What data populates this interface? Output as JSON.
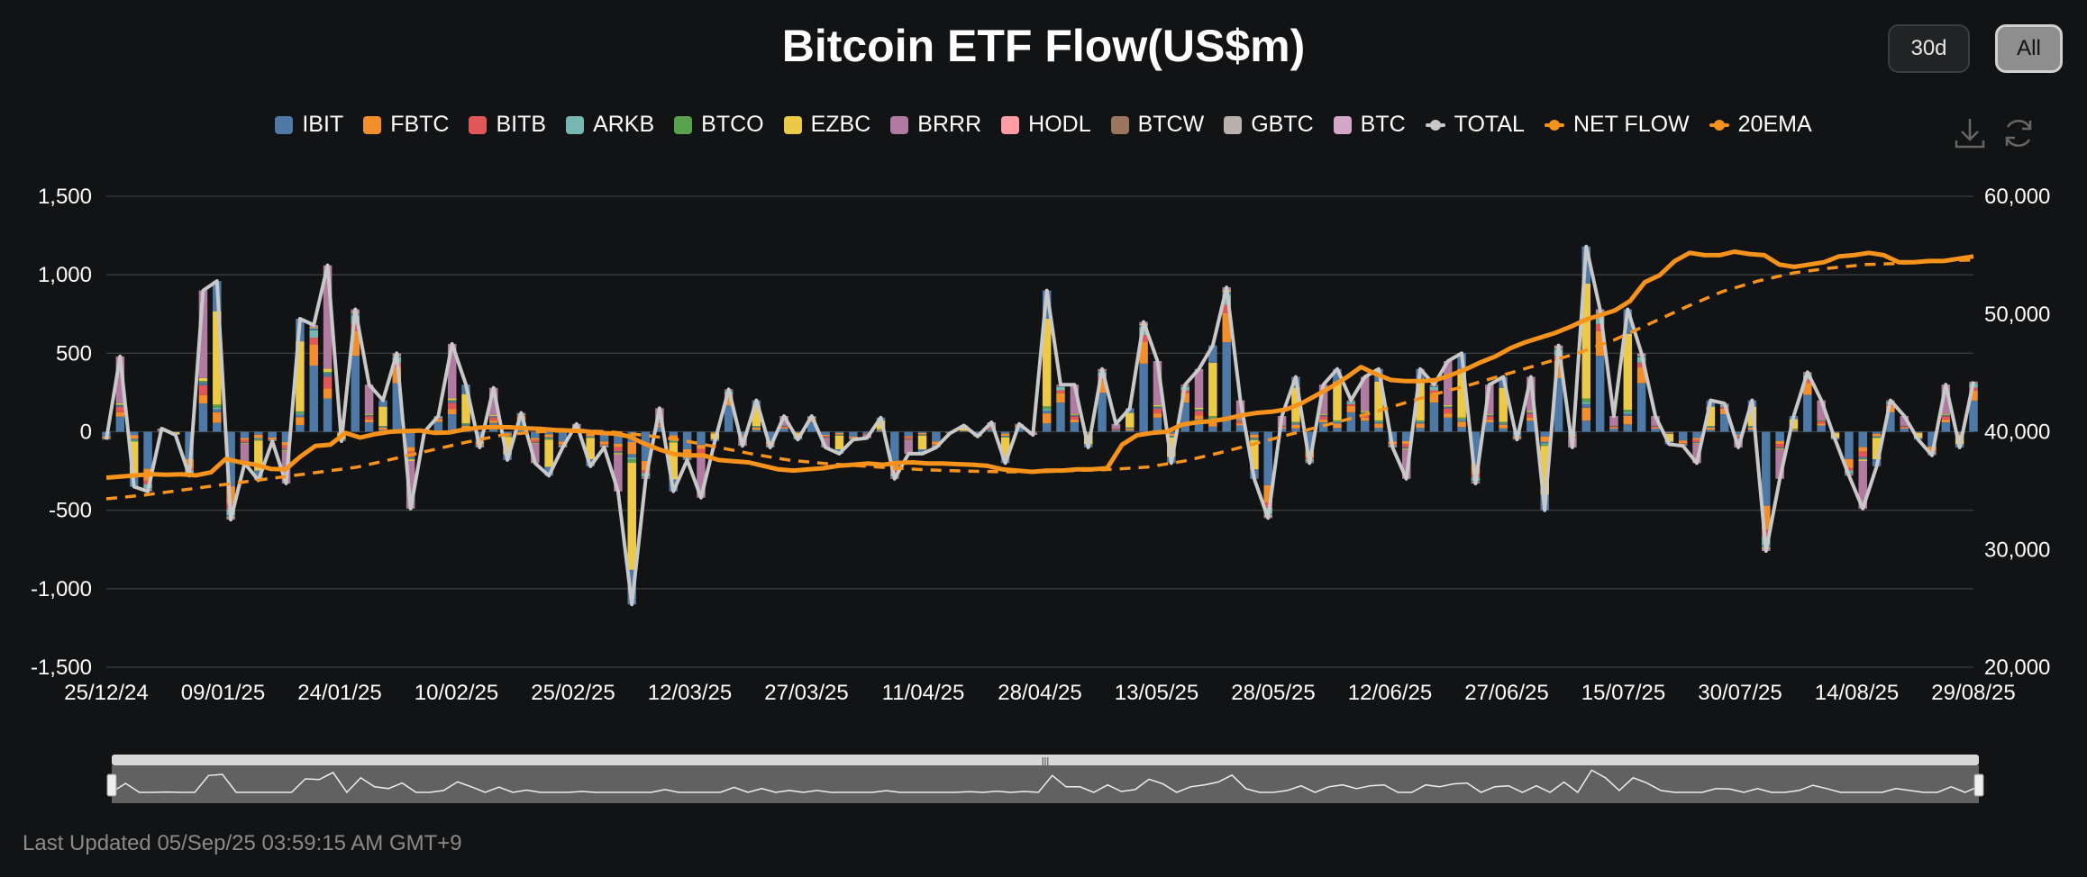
{
  "title": "Bitcoin ETF Flow(US$m)",
  "buttons": {
    "range_30d": "30d",
    "range_all": "All",
    "active": "All"
  },
  "toolbar": {
    "download_icon": "download-icon",
    "refresh_icon": "refresh-icon"
  },
  "legend": [
    {
      "name": "IBIT",
      "color": "#4e79a7",
      "kind": "bar"
    },
    {
      "name": "FBTC",
      "color": "#f28e2b",
      "kind": "bar"
    },
    {
      "name": "BITB",
      "color": "#e15759",
      "kind": "bar"
    },
    {
      "name": "ARKB",
      "color": "#76b7b2",
      "kind": "bar"
    },
    {
      "name": "BTCO",
      "color": "#59a14f",
      "kind": "bar"
    },
    {
      "name": "EZBC",
      "color": "#edc948",
      "kind": "bar"
    },
    {
      "name": "BRRR",
      "color": "#b07aa1",
      "kind": "bar"
    },
    {
      "name": "HODL",
      "color": "#ff9da7",
      "kind": "bar"
    },
    {
      "name": "BTCW",
      "color": "#9c755f",
      "kind": "bar"
    },
    {
      "name": "GBTC",
      "color": "#bab0ac",
      "kind": "bar"
    },
    {
      "name": "BTC",
      "color": "#d4a6c8",
      "kind": "bar"
    },
    {
      "name": "TOTAL",
      "color": "#c8c8c8",
      "kind": "line"
    },
    {
      "name": "NET FLOW",
      "color": "#f7931a",
      "kind": "line"
    },
    {
      "name": "20EMA",
      "color": "#f7931a",
      "kind": "line"
    }
  ],
  "chart_data": {
    "type": "bar",
    "title": "Bitcoin ETF Flow(US$m)",
    "x_tick_labels": [
      "25/12/24",
      "09/01/25",
      "24/01/25",
      "10/02/25",
      "25/02/25",
      "12/03/25",
      "27/03/25",
      "11/04/25",
      "28/04/25",
      "13/05/25",
      "28/05/25",
      "12/06/25",
      "27/06/25",
      "15/07/25",
      "30/07/25",
      "14/08/25",
      "29/08/25"
    ],
    "y_left_ticks": [
      "1,500",
      "1,000",
      "500",
      "0",
      "-500",
      "-1,000",
      "-1,500"
    ],
    "y_left_range": [
      -1500,
      1500
    ],
    "y_right_ticks": [
      "60,000",
      "50,000",
      "40,000",
      "30,000",
      "20,000"
    ],
    "y_right_range": [
      20000,
      60000
    ],
    "grid": true,
    "legend_position": "top",
    "series": [
      {
        "name": "TOTAL",
        "axis": "left",
        "kind": "line",
        "values": [
          -50,
          480,
          -350,
          -380,
          20,
          -20,
          -280,
          900,
          960,
          -560,
          -200,
          -310,
          -60,
          -330,
          720,
          680,
          1060,
          -60,
          780,
          300,
          200,
          500,
          -490,
          0,
          100,
          560,
          300,
          -100,
          280,
          -180,
          120,
          -200,
          -280,
          -100,
          50,
          -220,
          -100,
          -380,
          -1100,
          -300,
          150,
          -380,
          -180,
          -420,
          -60,
          270,
          -90,
          200,
          -100,
          100,
          -50,
          100,
          -100,
          -140,
          -50,
          -40,
          90,
          -300,
          -140,
          -140,
          -100,
          -10,
          40,
          -30,
          60,
          -200,
          50,
          -20,
          900,
          300,
          300,
          -100,
          400,
          50,
          150,
          700,
          450,
          -200,
          300,
          400,
          550,
          920,
          200,
          -300,
          -550,
          100,
          350,
          -200,
          300,
          400,
          200,
          350,
          400,
          -100,
          -300,
          400,
          300,
          450,
          500,
          -330,
          300,
          350,
          -50,
          350,
          -500,
          550,
          -100,
          1180,
          780,
          100,
          780,
          500,
          100,
          -80,
          -90,
          -200,
          200,
          180,
          -100,
          200,
          -760,
          -300,
          100,
          380,
          200,
          -50,
          -280,
          -490,
          -220,
          200,
          100,
          -50,
          -150,
          300,
          -100,
          320
        ]
      },
      {
        "name": "NET FLOW",
        "axis": "right",
        "kind": "line",
        "values": [
          36100,
          36200,
          36300,
          36400,
          36350,
          36380,
          36300,
          36550,
          37700,
          37400,
          37200,
          36850,
          36800,
          37900,
          38800,
          38900,
          39900,
          39500,
          39800,
          40000,
          40050,
          40100,
          39900,
          39950,
          40200,
          40350,
          40400,
          40380,
          40300,
          40250,
          40150,
          40100,
          40050,
          39900,
          39850,
          39600,
          39000,
          38500,
          38100,
          38000,
          38000,
          37600,
          37500,
          37400,
          37100,
          36800,
          36700,
          36800,
          36900,
          37100,
          37200,
          37300,
          37200,
          37350,
          37400,
          37300,
          37300,
          37250,
          37200,
          37100,
          36800,
          36700,
          36600,
          36700,
          36700,
          36800,
          36800,
          36900,
          38900,
          39700,
          39900,
          40000,
          40600,
          40800,
          40900,
          41100,
          41400,
          41600,
          41700,
          41900,
          42400,
          43100,
          43800,
          44600,
          45500,
          44900,
          44400,
          44300,
          44300,
          44400,
          44800,
          45300,
          45900,
          46400,
          47100,
          47600,
          48000,
          48400,
          48900,
          49500,
          49900,
          50300,
          51100,
          52700,
          53300,
          54500,
          55200,
          55000,
          55000,
          55300,
          55100,
          55000,
          54200,
          54000,
          54200,
          54400,
          54900,
          55000,
          55200,
          55000,
          54400,
          54400,
          54500,
          54500,
          54700,
          54900
        ]
      },
      {
        "name": "20EMA",
        "axis": "right",
        "kind": "line",
        "values": [
          34300,
          34600,
          35000,
          35400,
          35800,
          36200,
          36600,
          37000,
          37700,
          38400,
          39100,
          39700,
          40000,
          40100,
          40000,
          39700,
          39300,
          38700,
          38100,
          37600,
          37300,
          37100,
          36900,
          36750,
          36650,
          36600,
          36600,
          36700,
          36800,
          37000,
          37500,
          38200,
          39000,
          39800,
          40600,
          41400,
          42300,
          43200,
          44000,
          44900,
          45800,
          46700,
          47800,
          49200,
          50600,
          51900,
          52800,
          53500,
          53900,
          54200,
          54300,
          54500,
          54600
        ]
      }
    ],
    "bar_series_note": "stacked per-day bars by fund using legend colors"
  },
  "navigator": {
    "handle_label": "|||"
  },
  "footer": {
    "last_updated": "Last Updated 05/Sep/25 03:59:15 AM GMT+9"
  }
}
